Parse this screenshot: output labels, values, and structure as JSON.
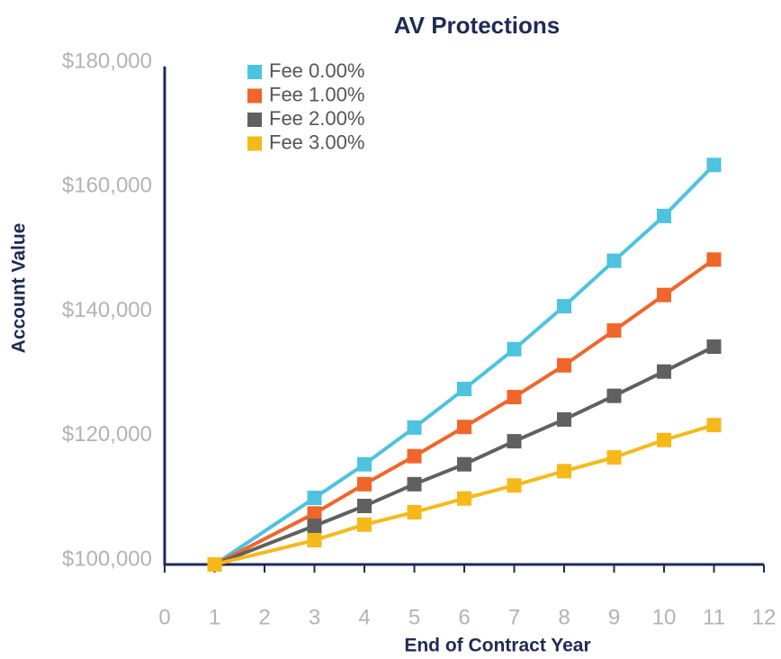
{
  "chart_data": {
    "type": "line",
    "title": "AV Protections",
    "xlabel": "End of Contract Year",
    "ylabel": "Account Value",
    "x": [
      1,
      3,
      4,
      5,
      6,
      7,
      8,
      9,
      10,
      11
    ],
    "series": [
      {
        "name": "Fee 0.00%",
        "color": "#4dc3e0",
        "values": [
          100000,
          110700,
          116100,
          122000,
          128200,
          134600,
          141500,
          148800,
          156000,
          164200
        ]
      },
      {
        "name": "Fee 1.00%",
        "color": "#f0662a",
        "values": [
          100000,
          108200,
          112900,
          117400,
          122100,
          126900,
          132000,
          137600,
          143300,
          149000
        ]
      },
      {
        "name": "Fee 2.00%",
        "color": "#606060",
        "values": [
          100000,
          106200,
          109400,
          112900,
          116100,
          119800,
          123300,
          127100,
          131000,
          135000
        ]
      },
      {
        "name": "Fee 3.00%",
        "color": "#f5b91a",
        "values": [
          100000,
          103900,
          106400,
          108400,
          110600,
          112700,
          115000,
          117200,
          120000,
          122400
        ]
      }
    ],
    "xlim": [
      0,
      12
    ],
    "xticks": [
      0,
      1,
      2,
      3,
      4,
      5,
      6,
      7,
      8,
      9,
      10,
      11,
      12
    ],
    "ylim": [
      100000,
      180000
    ],
    "yticks": [
      {
        "value": 100000,
        "label": "$100,000"
      },
      {
        "value": 120000,
        "label": "$120,000"
      },
      {
        "value": 140000,
        "label": "$140,000"
      },
      {
        "value": 160000,
        "label": "$160,000"
      },
      {
        "value": 180000,
        "label": "$180,000"
      }
    ],
    "legend": "top-left"
  }
}
